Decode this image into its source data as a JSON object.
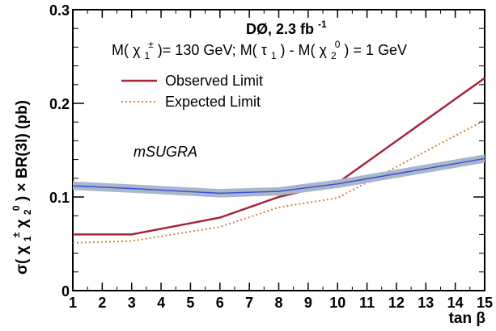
{
  "chart_data": {
    "type": "line",
    "title": "",
    "experiment_label": "DØ, 2.3 fb",
    "experiment_label_sup": "-1",
    "mass_condition": {
      "part1": "M(",
      "chi_pm": "χ",
      "chi_pm_sup": "±",
      "chi_pm_sub": "1",
      "part2": ")= 130 GeV; M(",
      "tau": "τ",
      "tau_sub": "1",
      "part3": ") - M(",
      "chi0": "χ",
      "chi0_sup": "0",
      "chi0_sub": "2",
      "part4": ") = 1 GeV"
    },
    "xlabel": "tan β",
    "ylabel": {
      "sigma": "σ(",
      "chi_a": "χ",
      "chi_a_sup": "±",
      "chi_a_sub": "1",
      "chi_b": "χ",
      "chi_b_sup": "0",
      "chi_b_sub": "2",
      "rest": ") × BR(3l) (pb)"
    },
    "xlim": [
      1,
      15
    ],
    "ylim": [
      0,
      0.3
    ],
    "x_ticks": [
      1,
      2,
      3,
      4,
      5,
      6,
      7,
      8,
      9,
      10,
      11,
      12,
      13,
      14,
      15
    ],
    "y_ticks": [
      0,
      0.1,
      0.2,
      0.3
    ],
    "y_tick_labels": [
      "0",
      "0.1",
      "0.2",
      "0.3"
    ],
    "legend_position": "top-left",
    "band_label": "mSUGRA",
    "series": [
      {
        "name": "Observed Limit",
        "style": "solid",
        "color": "#a3273b",
        "x": [
          1,
          3,
          6,
          8,
          10,
          15
        ],
        "y": [
          0.06,
          0.06,
          0.078,
          0.1,
          0.115,
          0.227
        ]
      },
      {
        "name": "Expected Limit",
        "style": "dotted",
        "color": "#cd853f",
        "x": [
          1,
          3,
          6,
          8,
          10,
          15
        ],
        "y": [
          0.051,
          0.053,
          0.068,
          0.089,
          0.099,
          0.182
        ]
      },
      {
        "name": "",
        "style": "solid-band",
        "color": "#3a4fd8",
        "band_color": "#a9b8c8",
        "band_halfwidth": 0.0045,
        "x": [
          1,
          3,
          6,
          8,
          10,
          15
        ],
        "y": [
          0.112,
          0.109,
          0.104,
          0.106,
          0.114,
          0.141
        ]
      }
    ]
  }
}
